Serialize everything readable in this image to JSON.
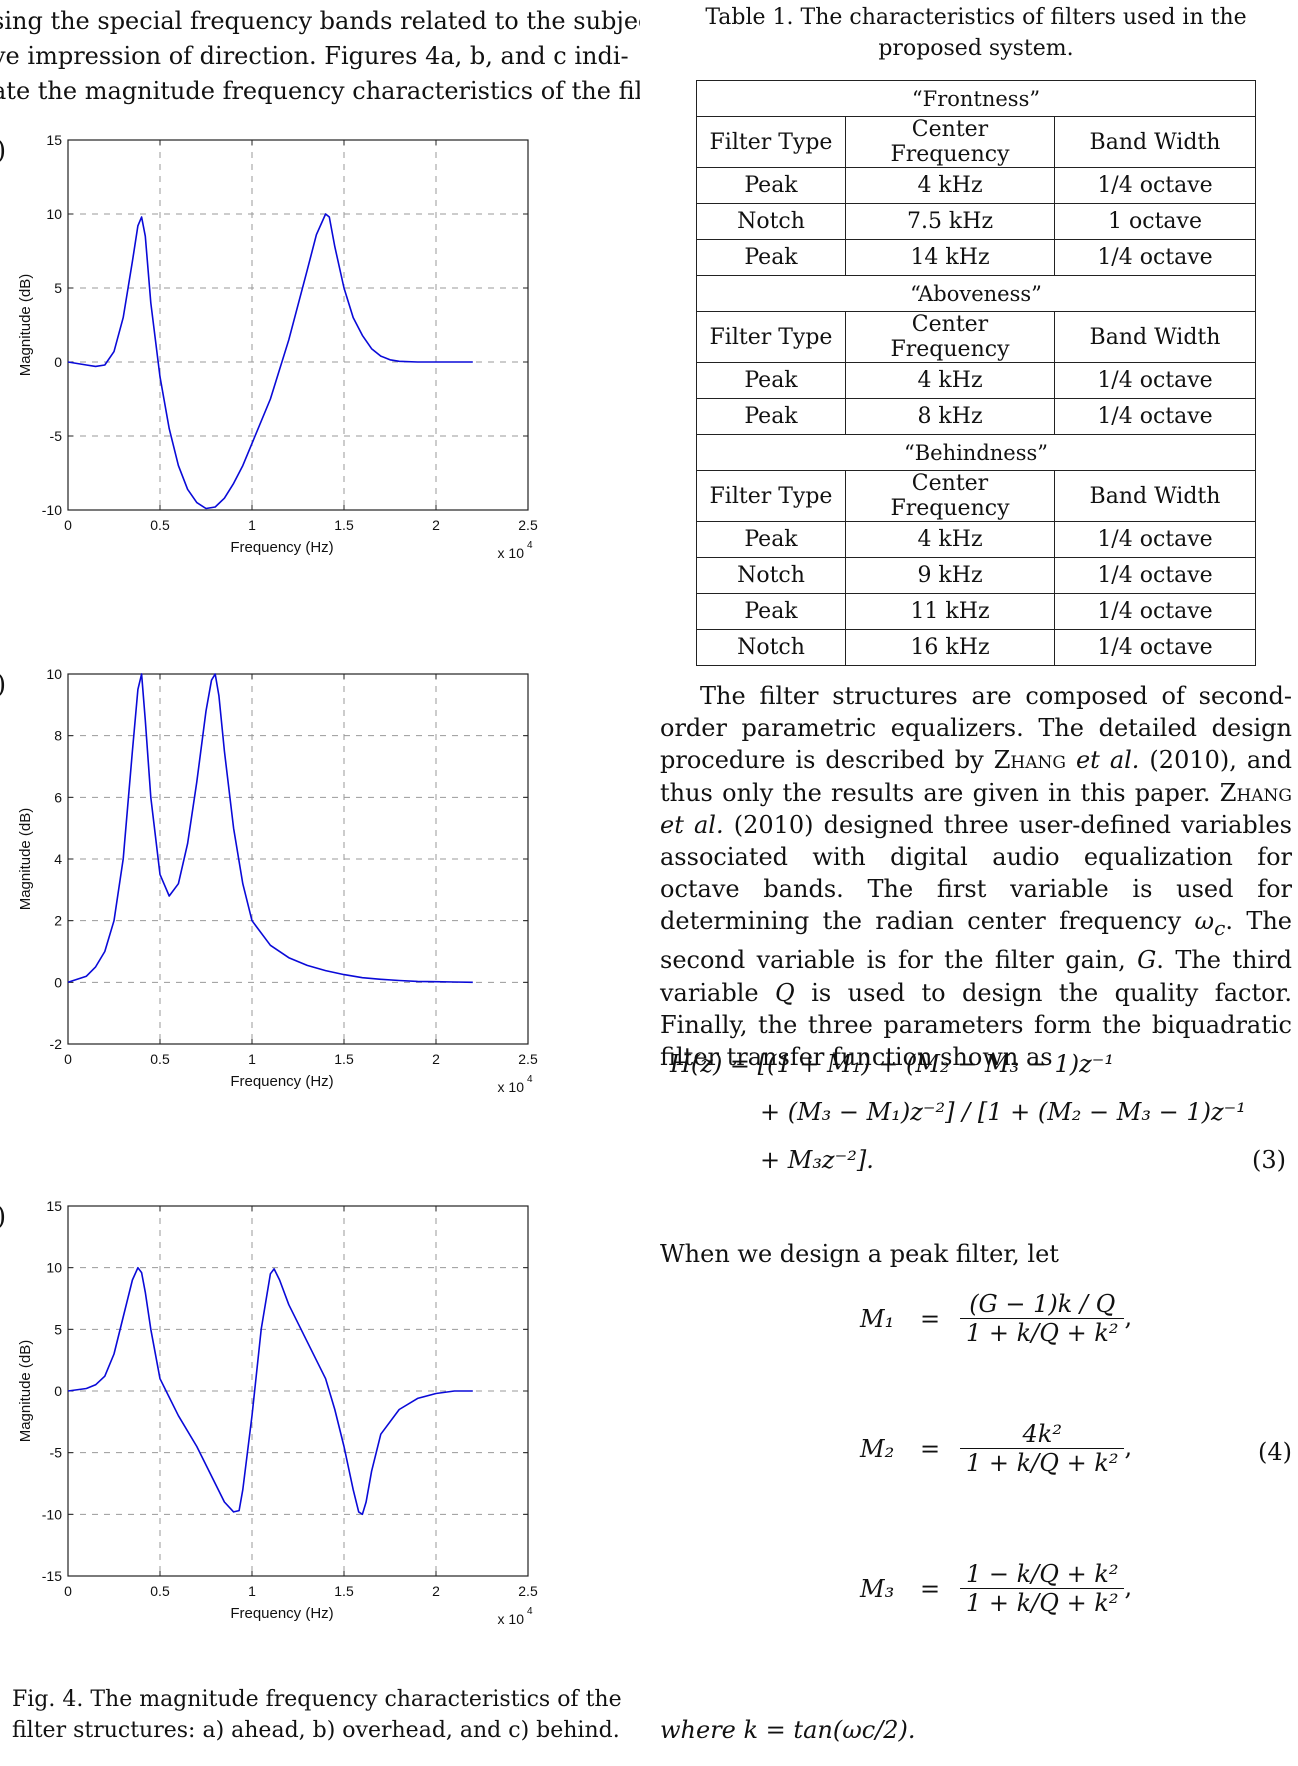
{
  "intro_lines": [
    "sing the special frequency bands related to the subjec-",
    "ve impression of direction. Figures 4a, b, and c indi-",
    "ate the magnitude frequency characteristics of the fil-"
  ],
  "panel_parens": [
    ")",
    ")",
    ")"
  ],
  "plot_colors": {
    "line": "#0a0ad8",
    "grid": "#9a9a9a",
    "axis": "#222222"
  },
  "chart_data": [
    {
      "type": "line",
      "xlabel": "Frequency (Hz)",
      "ylabel": "Magnitude (dB)",
      "x_multiplier": "x 10",
      "x_multiplier_exp": "4",
      "xlim": [
        0,
        2.5
      ],
      "ylim": [
        -10,
        15
      ],
      "xticks": [
        "0",
        "0.5",
        "1",
        "1.5",
        "2",
        "2.5"
      ],
      "yticks": [
        "15",
        "10",
        "5",
        "0",
        "-5",
        "-10"
      ],
      "grid": true,
      "x": [
        0,
        0.1,
        0.15,
        0.2,
        0.25,
        0.3,
        0.35,
        0.38,
        0.4,
        0.42,
        0.45,
        0.5,
        0.55,
        0.6,
        0.65,
        0.7,
        0.75,
        0.8,
        0.85,
        0.9,
        0.95,
        1.0,
        1.1,
        1.2,
        1.3,
        1.35,
        1.4,
        1.42,
        1.45,
        1.5,
        1.55,
        1.6,
        1.65,
        1.7,
        1.75,
        1.8,
        1.9,
        2.0,
        2.1,
        2.2
      ],
      "y": [
        0,
        -0.2,
        -0.3,
        -0.2,
        0.7,
        3.0,
        6.8,
        9.2,
        9.8,
        8.5,
        4.0,
        -1.0,
        -4.5,
        -7.0,
        -8.6,
        -9.5,
        -9.9,
        -9.8,
        -9.2,
        -8.2,
        -7.0,
        -5.5,
        -2.5,
        1.5,
        6.2,
        8.6,
        10.0,
        9.8,
        7.8,
        5.0,
        3.0,
        1.8,
        0.9,
        0.4,
        0.15,
        0.05,
        0,
        0,
        0,
        0
      ]
    },
    {
      "type": "line",
      "xlabel": "Frequency (Hz)",
      "ylabel": "Magnitude (dB)",
      "x_multiplier": "x 10",
      "x_multiplier_exp": "4",
      "xlim": [
        0,
        2.5
      ],
      "ylim": [
        -2,
        10
      ],
      "xticks": [
        "0",
        "0.5",
        "1",
        "1.5",
        "2",
        "2.5"
      ],
      "yticks": [
        "10",
        "8",
        "6",
        "4",
        "2",
        "0",
        "-2"
      ],
      "grid": true,
      "x": [
        0,
        0.1,
        0.15,
        0.2,
        0.25,
        0.3,
        0.35,
        0.38,
        0.4,
        0.42,
        0.45,
        0.5,
        0.55,
        0.6,
        0.65,
        0.7,
        0.75,
        0.78,
        0.8,
        0.82,
        0.85,
        0.9,
        0.95,
        1.0,
        1.1,
        1.2,
        1.3,
        1.4,
        1.5,
        1.6,
        1.7,
        1.8,
        1.9,
        2.0,
        2.1,
        2.2
      ],
      "y": [
        0,
        0.2,
        0.5,
        1.0,
        2.0,
        4.0,
        7.5,
        9.5,
        10.0,
        8.5,
        6.0,
        3.5,
        2.8,
        3.2,
        4.5,
        6.5,
        8.8,
        9.8,
        10.0,
        9.3,
        7.5,
        5.0,
        3.2,
        2.0,
        1.2,
        0.8,
        0.55,
        0.38,
        0.25,
        0.15,
        0.1,
        0.06,
        0.03,
        0.02,
        0.01,
        0
      ]
    },
    {
      "type": "line",
      "xlabel": "Frequency (Hz)",
      "ylabel": "Magnitude (dB)",
      "x_multiplier": "x 10",
      "x_multiplier_exp": "4",
      "xlim": [
        0,
        2.5
      ],
      "ylim": [
        -15,
        15
      ],
      "xticks": [
        "0",
        "0.5",
        "1",
        "1.5",
        "2",
        "2.5"
      ],
      "yticks": [
        "15",
        "10",
        "5",
        "0",
        "-5",
        "-10",
        "-15"
      ],
      "grid": true,
      "x": [
        0,
        0.1,
        0.15,
        0.2,
        0.25,
        0.3,
        0.35,
        0.38,
        0.4,
        0.42,
        0.45,
        0.5,
        0.6,
        0.7,
        0.8,
        0.85,
        0.9,
        0.93,
        0.95,
        1.0,
        1.05,
        1.1,
        1.12,
        1.15,
        1.2,
        1.3,
        1.4,
        1.45,
        1.5,
        1.55,
        1.58,
        1.6,
        1.62,
        1.65,
        1.7,
        1.8,
        1.9,
        2.0,
        2.1,
        2.2
      ],
      "y": [
        0,
        0.2,
        0.5,
        1.2,
        3.0,
        6.0,
        9.0,
        10.0,
        9.6,
        8.0,
        5.0,
        1.0,
        -2.0,
        -4.5,
        -7.5,
        -9.0,
        -9.8,
        -9.7,
        -8.0,
        -2.0,
        5.0,
        9.5,
        9.9,
        9.0,
        7.0,
        4.0,
        1.0,
        -1.5,
        -4.5,
        -8.0,
        -9.8,
        -10.0,
        -9.0,
        -6.5,
        -3.5,
        -1.5,
        -0.6,
        -0.2,
        0,
        0
      ]
    }
  ],
  "caption": "Fig. 4. The magnitude frequency characteristics of the filter structures: a) ahead, b) overhead, and c) behind.",
  "table": {
    "caption_line1": "Table 1. The characteristics of filters used in the",
    "caption_line2": "proposed system.",
    "headers": [
      "Filter Type",
      "Center Frequency",
      "Band Width"
    ],
    "sections": [
      {
        "title": "“Frontness”",
        "rows": [
          [
            "Peak",
            "4 kHz",
            "1/4 octave"
          ],
          [
            "Notch",
            "7.5 kHz",
            "1 octave"
          ],
          [
            "Peak",
            "14 kHz",
            "1/4 octave"
          ]
        ]
      },
      {
        "title": "“Aboveness”",
        "rows": [
          [
            "Peak",
            "4 kHz",
            "1/4 octave"
          ],
          [
            "Peak",
            "8 kHz",
            "1/4 octave"
          ]
        ]
      },
      {
        "title": "“Behindness”",
        "rows": [
          [
            "Peak",
            "4 kHz",
            "1/4 octave"
          ],
          [
            "Notch",
            "9 kHz",
            "1/4 octave"
          ],
          [
            "Peak",
            "11 kHz",
            "1/4 octave"
          ],
          [
            "Notch",
            "16 kHz",
            "1/4 octave"
          ]
        ]
      }
    ]
  },
  "paragraph": {
    "p1": "The filter structures are composed of second-order parametric equalizers. The detailed design procedure is described by ",
    "author1": "Zhang",
    "etal": "et al.",
    "p2": " (2010), and thus only the results are given in this paper. ",
    "p3": " (2010) designed three user-defined variables associated with digital audio equalization for octave bands. The first variable is used for determining the radian center frequency ",
    "omega": "ω",
    "omega_sub": "c",
    "p4": ". The second variable is for the filter gain, ",
    "G": "G",
    "p5": ". The third variable ",
    "Q": "Q",
    "p6": " is used to design the quality factor. Finally, the three parameters form the biquadratic filter transfer function shown as"
  },
  "equation3": {
    "line1": "H(z) = [(1 + M₁) + (M₂ − M₃ − 1)z⁻¹",
    "line2": "+ (M₃ − M₁)z⁻²] / [1 + (M₂ − M₃ − 1)z⁻¹",
    "line3": "+ M₃z⁻²].",
    "number": "(3)"
  },
  "let_text": "When we design a peak filter, let",
  "equation4": {
    "m1_lhs": "M₁",
    "m1_num": "(G − 1)k / Q",
    "m1_den": "1 + k/Q + k²",
    "m2_lhs": "M₂",
    "m2_num": "4k²",
    "m2_den": "1 + k/Q + k²",
    "m3_lhs": "M₃",
    "m3_num": "1 − k/Q + k²",
    "m3_den": "1 + k/Q + k²",
    "eq": "=",
    "comma": ",",
    "number": "(4)"
  },
  "where_text": "where k = tan(ωc/2)."
}
